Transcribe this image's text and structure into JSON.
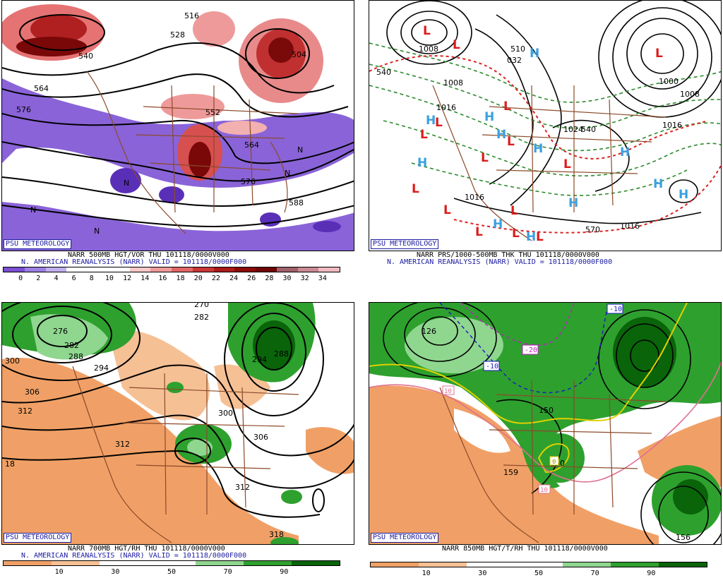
{
  "panels": [
    {
      "badge": "PSU METEOROLOGY",
      "title_line1": "NARR 500MB HGT/VOR THU 101118/0000V000",
      "title_line2": "N. AMERICAN REANALYSIS (NARR) VALID = 101118/0000F000",
      "colorbar": {
        "colors": [
          "#7a4fd1",
          "#9b7fe0",
          "#c0aeec",
          "#ffffff",
          "#ffffff",
          "#ffffff",
          "#f7c8c8",
          "#ef9a9a",
          "#e06666",
          "#c93636",
          "#aa1a1a",
          "#8b0a0a",
          "#6e0606",
          "#a0606a",
          "#c98a94",
          "#f0b9c0"
        ],
        "ticks": [
          "0",
          "2",
          "4",
          "6",
          "8",
          "10",
          "12",
          "14",
          "16",
          "18",
          "20",
          "22",
          "24",
          "26",
          "28",
          "30",
          "32",
          "34"
        ]
      },
      "contour_labels": [
        "516",
        "528",
        "564",
        "576",
        "552",
        "564",
        "576",
        "588",
        "540",
        "504",
        "N",
        "N",
        "N",
        "N",
        "N"
      ]
    },
    {
      "badge": "PSU METEOROLOGY",
      "title_line1": "NARR PRS/1000-500MB THK THU 101118/0000V000",
      "title_line2": "N. AMERICAN REANALYSIS (NARR) VALID = 101118/0000F000",
      "contour_labels": [
        "1008",
        "1008",
        "1016",
        "510",
        "032",
        "540",
        "1016",
        "1000",
        "1008",
        "1024",
        "1016",
        "570",
        "1016",
        "540"
      ],
      "highs_label": "H",
      "lows_label": "L"
    },
    {
      "badge": "PSU METEOROLOGY",
      "title_line1": "NARR 700MB HGT/RH THU 101118/0000V000",
      "title_line2": "N. AMERICAN REANALYSIS (NARR) VALID = 101118/0000F000",
      "colorbar": {
        "colors": [
          "#f0a066",
          "#f6c095",
          "#ffffff",
          "#ffffff",
          "#8fd68f",
          "#2ea02e",
          "#0a640a"
        ],
        "ticks": [
          "10",
          "30",
          "50",
          "70",
          "90"
        ]
      },
      "contour_labels": [
        "276",
        "282",
        "288",
        "294",
        "270",
        "282",
        "288",
        "294",
        "300",
        "306",
        "312",
        "312",
        "300",
        "306",
        "312",
        "318",
        "18"
      ]
    },
    {
      "badge": "PSU METEOROLOGY",
      "title_line1": "NARR 850MB HGT/T/RH THU 101118/0000V000",
      "colorbar": {
        "colors": [
          "#f0a066",
          "#f6c095",
          "#ffffff",
          "#ffffff",
          "#8fd68f",
          "#2ea02e",
          "#0a640a"
        ],
        "ticks": [
          "10",
          "30",
          "50",
          "70",
          "90"
        ]
      },
      "contour_labels": [
        "126",
        "150",
        "150",
        "159",
        "156",
        "-10",
        "-10",
        "-20",
        "10",
        "10",
        "0"
      ]
    }
  ]
}
